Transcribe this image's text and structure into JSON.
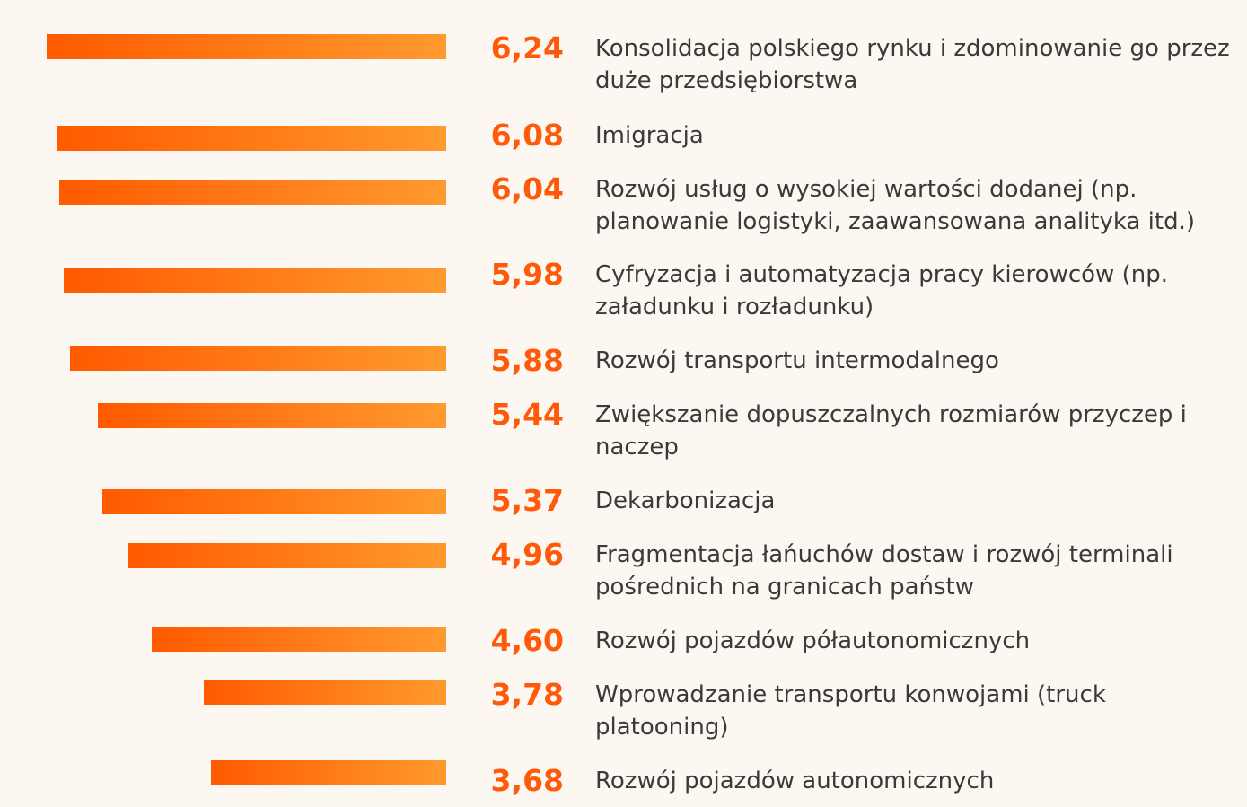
{
  "chart_data": {
    "type": "bar",
    "orientation": "horizontal",
    "title": "",
    "xlabel": "",
    "ylabel": "",
    "categories": [
      "Konsolidacja polskiego rynku i zdominowanie go przez duże przedsiębiorstwa",
      "Imigracja",
      "Rozwój usług o wysokiej wartości dodanej (np. planowanie logistyki, zaawansowana analityka itd.)",
      "Cyfryzacja i automatyzacja pracy kierowców (np. załadunku i rozładunku)",
      "Rozwój transportu intermodalnego",
      "Zwiększanie dopuszczalnych rozmiarów przyczep i naczep",
      "Dekarbonizacja",
      "Fragmentacja łańuchów dostaw i rozwój terminali pośrednich na granicach państw",
      "Rozwój pojazdów półautonomicznych",
      "Wprowadzanie transportu konwojami (truck platooning)",
      "Rozwój pojazdów autonomicznych"
    ],
    "values": [
      6.24,
      6.08,
      6.04,
      5.98,
      5.88,
      5.44,
      5.37,
      4.96,
      4.6,
      3.78,
      3.68
    ],
    "value_labels": [
      "6,24",
      "6,08",
      "6,04",
      "5,98",
      "5,88",
      "5,44",
      "5,37",
      "4,96",
      "4,60",
      "3,78",
      "3,68"
    ],
    "bar_direction": "right-to-left",
    "colors": {
      "bar_start": "#ff5a00",
      "bar_end": "#ff9a2e",
      "value_text": "#ff5a0a",
      "label_text": "#3a3a3a",
      "background": "#fcf8f1"
    }
  }
}
